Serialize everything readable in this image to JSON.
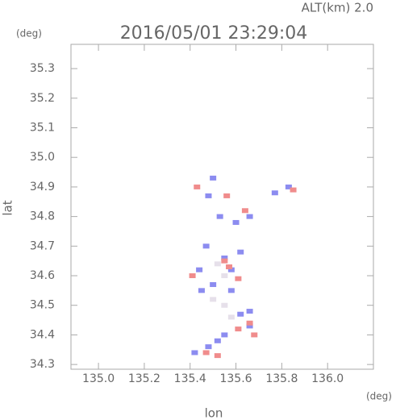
{
  "chart_data": {
    "type": "scatter",
    "title": "2016/05/01 23:29:04",
    "annotation": "ALT(km) 2.0",
    "xlabel": "lon",
    "ylabel": "lat",
    "xunit": "(deg)",
    "yunit": "(deg)",
    "xlim": [
      134.88,
      136.2
    ],
    "ylim": [
      34.284,
      35.382
    ],
    "xticks": [
      {
        "value": 135.0,
        "label": "135.0"
      },
      135.2,
      135.4,
      135.6,
      135.8,
      {
        "value": 136.0,
        "label": "136.0"
      }
    ],
    "yticks": [
      34.3,
      34.4,
      34.5,
      34.6,
      34.7,
      34.8,
      34.9,
      {
        "value": 35.0,
        "label": "35.0"
      },
      35.1,
      35.2,
      35.3
    ],
    "series": [
      {
        "color": "#8c8cf0",
        "x": [
          135.5,
          135.48,
          135.53,
          135.6,
          135.66,
          135.77,
          135.83,
          135.47,
          135.44,
          135.55,
          135.62,
          135.5,
          135.58,
          135.62,
          135.66,
          135.55,
          135.48,
          135.42,
          135.52,
          135.66,
          135.58,
          135.45
        ],
        "y": [
          34.93,
          34.87,
          34.8,
          34.78,
          34.8,
          34.88,
          34.9,
          34.7,
          34.62,
          34.66,
          34.68,
          34.57,
          34.55,
          34.47,
          34.48,
          34.4,
          34.36,
          34.34,
          34.38,
          34.43,
          34.62,
          34.55
        ]
      },
      {
        "color": "#f08c8c",
        "x": [
          135.43,
          135.56,
          135.85,
          135.64,
          135.57,
          135.61,
          135.41,
          135.66,
          135.61,
          135.68,
          135.52,
          135.47,
          135.55
        ],
        "y": [
          34.9,
          34.87,
          34.89,
          34.82,
          34.63,
          34.59,
          34.6,
          34.44,
          34.42,
          34.4,
          34.33,
          34.34,
          34.65
        ]
      },
      {
        "color": "#e6e0ea",
        "x": [
          135.55,
          135.5,
          135.55,
          135.52,
          135.58
        ],
        "y": [
          34.6,
          34.52,
          34.5,
          34.64,
          34.46
        ]
      }
    ]
  }
}
